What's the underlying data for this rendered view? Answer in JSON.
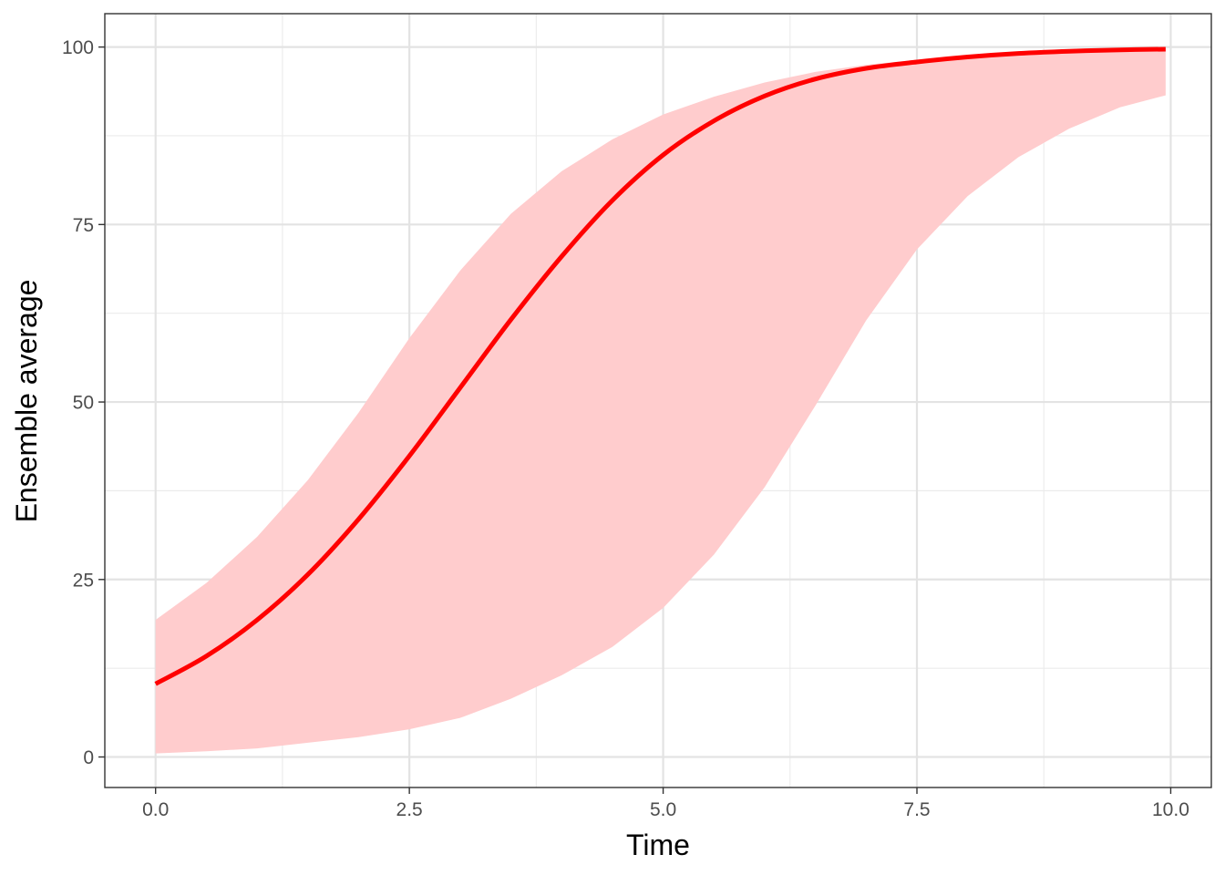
{
  "chart_data": {
    "type": "line",
    "title": "",
    "xlabel": "Time",
    "ylabel": "Ensemble average",
    "xlim": [
      -0.5,
      10.4
    ],
    "ylim": [
      -4.3,
      104.7
    ],
    "x_ticks": [
      0.0,
      2.5,
      5.0,
      7.5,
      10.0
    ],
    "x_tick_labels": [
      "0.0",
      "2.5",
      "5.0",
      "7.5",
      "10.0"
    ],
    "y_ticks": [
      0,
      25,
      50,
      75,
      100
    ],
    "y_tick_labels": [
      "0",
      "25",
      "50",
      "75",
      "100"
    ],
    "x_minor": [
      1.25,
      3.75,
      6.25,
      8.75
    ],
    "y_minor": [
      12.5,
      37.5,
      62.5,
      87.5
    ],
    "grid": true,
    "line_color": "#ff0000",
    "band_color": "#ffcccd",
    "series": [
      {
        "type": "line",
        "x": [
          0,
          0.5,
          1,
          1.5,
          2,
          2.5,
          3,
          3.5,
          4,
          4.5,
          5,
          5.5,
          6,
          6.5,
          7,
          7.5,
          8,
          8.5,
          9,
          9.5,
          9.95
        ],
        "y": [
          10.3,
          14.2,
          19.3,
          25.7,
          33.5,
          42.4,
          52.0,
          61.6,
          70.5,
          78.4,
          84.8,
          89.6,
          93.1,
          95.5,
          97.0,
          97.9,
          98.6,
          99.1,
          99.4,
          99.6,
          99.7
        ]
      },
      {
        "type": "band",
        "x": [
          0,
          0.5,
          1,
          1.5,
          2,
          2.5,
          3,
          3.5,
          4,
          4.5,
          5,
          5.5,
          6,
          6.5,
          7,
          7.5,
          8,
          8.5,
          9,
          9.5,
          9.95
        ],
        "lower": [
          0.5,
          0.8,
          1.2,
          2.0,
          2.8,
          3.9,
          5.5,
          8.2,
          11.5,
          15.5,
          21.0,
          28.5,
          38.0,
          49.5,
          61.5,
          71.5,
          79.0,
          84.5,
          88.5,
          91.5,
          93.2
        ],
        "upper": [
          19.3,
          24.5,
          31.0,
          39.0,
          48.5,
          59.0,
          68.5,
          76.5,
          82.5,
          87.0,
          90.5,
          93.0,
          95.0,
          96.5,
          97.5,
          98.2,
          98.8,
          99.2,
          99.5,
          99.7,
          99.8
        ]
      }
    ]
  }
}
